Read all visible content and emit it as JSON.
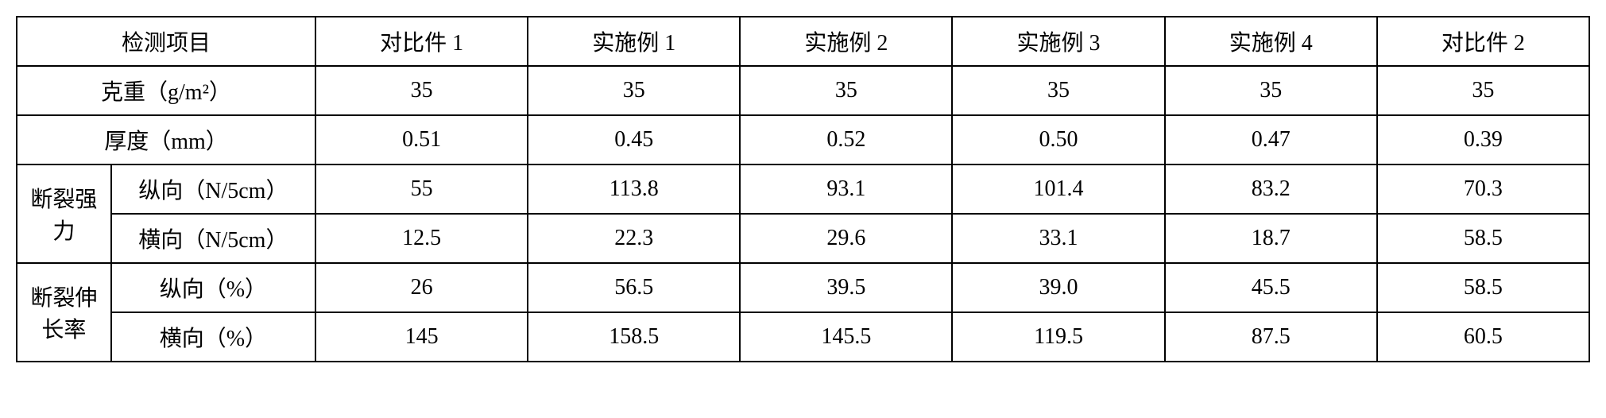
{
  "table": {
    "headers": {
      "test_item": "检测项目",
      "comp1": "对比件 1",
      "ex1": "实施例 1",
      "ex2": "实施例 2",
      "ex3": "实施例 3",
      "ex4": "实施例 4",
      "comp2": "对比件 2"
    },
    "rows": {
      "weight": {
        "label": "克重（g/m²）",
        "values": [
          "35",
          "35",
          "35",
          "35",
          "35",
          "35"
        ]
      },
      "thickness": {
        "label": "厚度（mm）",
        "values": [
          "0.51",
          "0.45",
          "0.52",
          "0.50",
          "0.47",
          "0.39"
        ]
      },
      "break_strength": {
        "group_label": "断裂强力",
        "longitudinal": {
          "label": "纵向（N/5cm）",
          "values": [
            "55",
            "113.8",
            "93.1",
            "101.4",
            "83.2",
            "70.3"
          ]
        },
        "transverse": {
          "label": "横向（N/5cm）",
          "values": [
            "12.5",
            "22.3",
            "29.6",
            "33.1",
            "18.7",
            "58.5"
          ]
        }
      },
      "elongation": {
        "group_label": "断裂伸长率",
        "longitudinal": {
          "label": "纵向（%）",
          "values": [
            "26",
            "56.5",
            "39.5",
            "39.0",
            "45.5",
            "58.5"
          ]
        },
        "transverse": {
          "label": "横向（%）",
          "values": [
            "145",
            "158.5",
            "145.5",
            "119.5",
            "87.5",
            "60.5"
          ]
        }
      }
    }
  }
}
